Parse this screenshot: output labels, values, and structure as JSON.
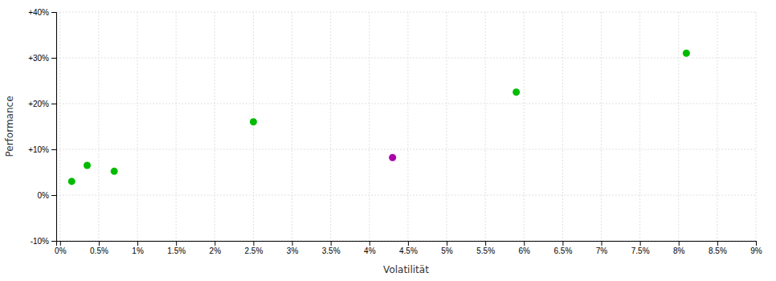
{
  "chart_data": {
    "type": "scatter",
    "x": [
      0.0015,
      0.0035,
      0.007,
      0.025,
      0.043,
      0.059,
      0.081
    ],
    "values": [
      0.03,
      0.065,
      0.052,
      0.16,
      0.082,
      0.225,
      0.31
    ],
    "colors": [
      "#00bb00",
      "#00bb00",
      "#00bb00",
      "#00bb00",
      "#aa00aa",
      "#00bb00",
      "#00bb00"
    ],
    "xlim": [
      -0.0005,
      0.09
    ],
    "ylim": [
      -0.1,
      0.4
    ],
    "xticks": [
      {
        "value": 0.0,
        "label": "0%"
      },
      {
        "value": 0.005,
        "label": "0.5%"
      },
      {
        "value": 0.01,
        "label": "1%"
      },
      {
        "value": 0.015,
        "label": "1.5%"
      },
      {
        "value": 0.02,
        "label": "2%"
      },
      {
        "value": 0.025,
        "label": "2.5%"
      },
      {
        "value": 0.03,
        "label": "3%"
      },
      {
        "value": 0.035,
        "label": "3.5%"
      },
      {
        "value": 0.04,
        "label": "4%"
      },
      {
        "value": 0.045,
        "label": "4.5%"
      },
      {
        "value": 0.05,
        "label": "5%"
      },
      {
        "value": 0.055,
        "label": "5.5%"
      },
      {
        "value": 0.06,
        "label": "6%"
      },
      {
        "value": 0.065,
        "label": "6.5%"
      },
      {
        "value": 0.07,
        "label": "7%"
      },
      {
        "value": 0.075,
        "label": "7.5%"
      },
      {
        "value": 0.08,
        "label": "8%"
      },
      {
        "value": 0.085,
        "label": "8.5%"
      },
      {
        "value": 0.09,
        "label": "9%"
      }
    ],
    "yticks": [
      {
        "value": -0.1,
        "label": "-10%"
      },
      {
        "value": 0.0,
        "label": "0%"
      },
      {
        "value": 0.1,
        "label": "+10%"
      },
      {
        "value": 0.2,
        "label": "+20%"
      },
      {
        "value": 0.3,
        "label": "+30%"
      },
      {
        "value": 0.4,
        "label": "+40%"
      }
    ],
    "xlabel": "Volatilität",
    "ylabel": "Performance",
    "grid": true
  }
}
